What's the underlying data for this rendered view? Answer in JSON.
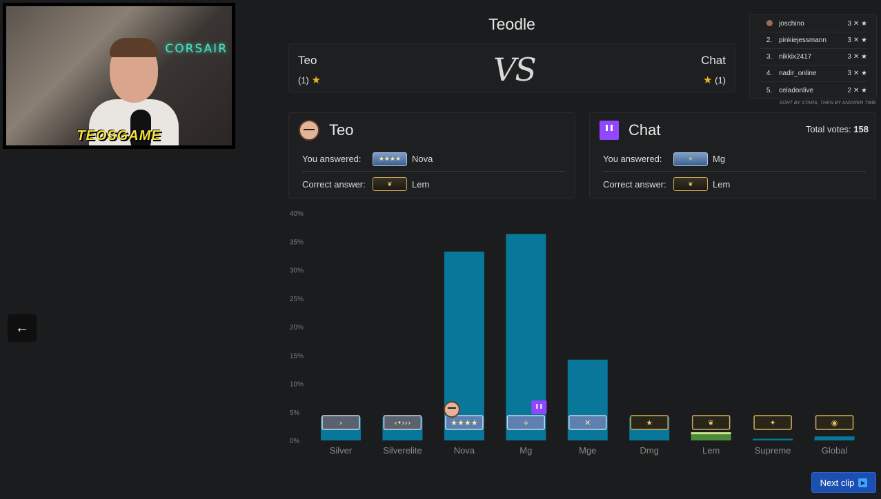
{
  "webcam": {
    "sign_text": "CORSAIR",
    "streamer_name": "TEOSGAME"
  },
  "title": "Teodle",
  "versus": {
    "left_name": "Teo",
    "left_score": "(1)",
    "vs_text": "VS",
    "right_name": "Chat",
    "right_score": "(1)"
  },
  "leaderboard": {
    "rows": [
      {
        "rank": "",
        "name": "joschino",
        "score": "3 ✕ ★"
      },
      {
        "rank": "2.",
        "name": "pinkiejessmann",
        "score": "3 ✕ ★"
      },
      {
        "rank": "3.",
        "name": "nikkix2417",
        "score": "3 ✕ ★"
      },
      {
        "rank": "4.",
        "name": "nadir_online",
        "score": "3 ✕ ★"
      },
      {
        "rank": "5.",
        "name": "celadonlive",
        "score": "2 ✕ ★"
      }
    ],
    "note": "SORT BY STARS, THEN BY ANSWER TIME"
  },
  "teo_panel": {
    "title": "Teo",
    "answered_label": "You answered:",
    "answered_value": "Nova",
    "correct_label": "Correct answer:",
    "correct_value": "Lem"
  },
  "chat_panel": {
    "title": "Chat",
    "votes_label": "Total votes:",
    "votes_value": "158",
    "answered_label": "You answered:",
    "answered_value": "Mg",
    "correct_label": "Correct answer:",
    "correct_value": "Lem"
  },
  "chart_data": {
    "type": "bar",
    "categories": [
      "Silver",
      "Silverelite",
      "Nova",
      "Mg",
      "Mge",
      "Dmg",
      "Lem",
      "Supreme",
      "Global"
    ],
    "values": [
      4.1,
      4.1,
      33.2,
      36.3,
      14.2,
      4.1,
      1.2,
      0.3,
      0.7
    ],
    "ylim": [
      0,
      40
    ],
    "yticks": [
      "0%",
      "5%",
      "10%",
      "15%",
      "20%",
      "25%",
      "30%",
      "35%",
      "40%"
    ],
    "bar_color": "#08779a",
    "correct_color": "#4c8a3c",
    "correct_category": "Lem",
    "teo_pick": "Nova",
    "chat_pick": "Mg"
  },
  "next_button": {
    "label": "Next clip"
  },
  "colors": {
    "background": "#1b1c1d",
    "accent": "#1d4fb0",
    "star": "#f5b31d",
    "twitch": "#9146ff"
  }
}
